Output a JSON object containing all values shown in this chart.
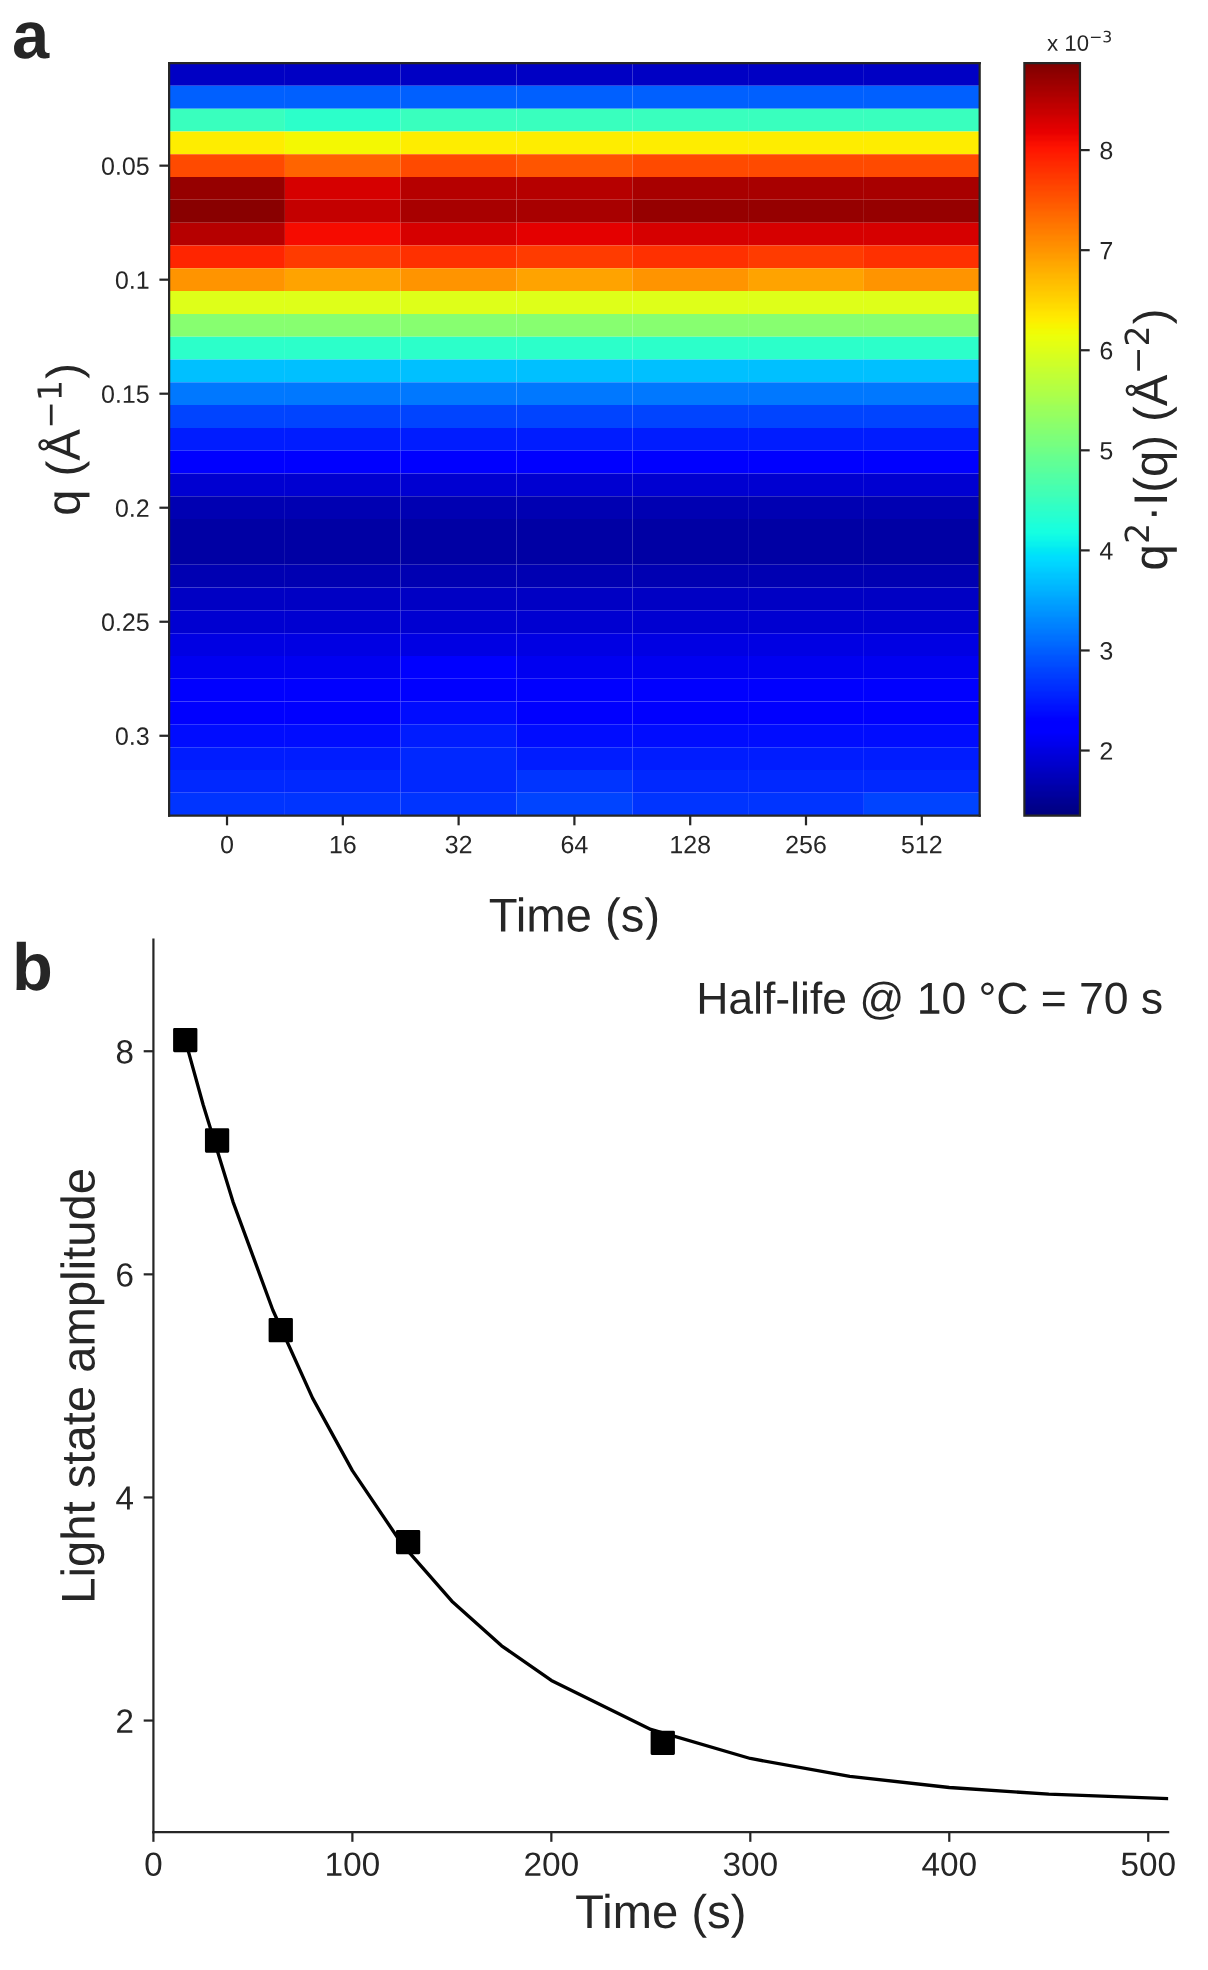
{
  "chart_data": [
    {
      "type": "heatmap",
      "xlabel": "Time (s)",
      "ylabel": "q (Å$^{−1}$)",
      "clabel": "q$^{2}$·I(q) (Å$^{−2}$)",
      "annotations": [
        "a",
        "x 10$^{−3}$"
      ],
      "categories": [
        "0",
        "16",
        "32",
        "64",
        "128",
        "256",
        "512"
      ],
      "y_categories": [
        null,
        null,
        null,
        null,
        "0.05",
        null,
        null,
        null,
        null,
        "0.1",
        null,
        null,
        null,
        null,
        "0.15",
        null,
        null,
        null,
        null,
        "0.2",
        null,
        null,
        null,
        null,
        "0.25",
        null,
        null,
        null,
        null,
        "0.3",
        null,
        null,
        null
      ],
      "clim": [
        1.35,
        8.87
      ],
      "cticks": [
        2,
        3,
        4,
        5,
        6,
        7,
        8
      ],
      "cells": [
        [
          1.8,
          1.8,
          1.8,
          1.8,
          1.8,
          1.8,
          1.8
        ],
        [
          3.0,
          3.0,
          3.0,
          3.0,
          3.0,
          3.0,
          3.0
        ],
        [
          4.5,
          4.4,
          4.5,
          4.5,
          4.5,
          4.5,
          4.5
        ],
        [
          6.3,
          6.2,
          6.3,
          6.3,
          6.3,
          6.3,
          6.3
        ],
        [
          7.6,
          7.4,
          7.6,
          7.5,
          7.6,
          7.6,
          7.6
        ],
        [
          8.7,
          8.3,
          8.5,
          8.5,
          8.6,
          8.6,
          8.6
        ],
        [
          8.8,
          8.4,
          8.6,
          8.6,
          8.7,
          8.7,
          8.7
        ],
        [
          8.5,
          8.1,
          8.3,
          8.2,
          8.3,
          8.3,
          8.3
        ],
        [
          7.9,
          7.7,
          7.8,
          7.7,
          7.8,
          7.7,
          7.8
        ],
        [
          7.0,
          6.9,
          7.0,
          6.9,
          7.0,
          6.9,
          7.0
        ],
        [
          6.0,
          6.0,
          6.0,
          6.0,
          6.0,
          6.0,
          6.0
        ],
        [
          5.2,
          5.2,
          5.2,
          5.2,
          5.2,
          5.2,
          5.2
        ],
        [
          4.4,
          4.4,
          4.4,
          4.4,
          4.4,
          4.4,
          4.4
        ],
        [
          3.7,
          3.7,
          3.7,
          3.7,
          3.7,
          3.7,
          3.7
        ],
        [
          3.2,
          3.2,
          3.2,
          3.2,
          3.2,
          3.2,
          3.2
        ],
        [
          2.8,
          2.8,
          2.8,
          2.8,
          2.8,
          2.8,
          2.8
        ],
        [
          2.5,
          2.5,
          2.5,
          2.5,
          2.5,
          2.5,
          2.5
        ],
        [
          2.2,
          2.2,
          2.2,
          2.2,
          2.2,
          2.2,
          2.2
        ],
        [
          1.9,
          1.9,
          1.9,
          1.9,
          1.9,
          1.9,
          1.9
        ],
        [
          1.7,
          1.7,
          1.7,
          1.7,
          1.7,
          1.7,
          1.7
        ],
        [
          1.6,
          1.6,
          1.6,
          1.6,
          1.6,
          1.6,
          1.6
        ],
        [
          1.6,
          1.6,
          1.6,
          1.6,
          1.6,
          1.6,
          1.6
        ],
        [
          1.7,
          1.7,
          1.7,
          1.7,
          1.7,
          1.7,
          1.7
        ],
        [
          1.8,
          1.8,
          1.8,
          1.8,
          1.8,
          1.8,
          1.8
        ],
        [
          1.9,
          1.9,
          1.9,
          1.9,
          1.9,
          1.9,
          1.9
        ],
        [
          2.0,
          2.0,
          2.0,
          2.0,
          2.0,
          2.0,
          2.0
        ],
        [
          2.1,
          2.1,
          2.2,
          2.1,
          2.1,
          2.1,
          2.1
        ],
        [
          2.2,
          2.2,
          2.3,
          2.2,
          2.2,
          2.2,
          2.2
        ],
        [
          2.3,
          2.3,
          2.4,
          2.3,
          2.3,
          2.3,
          2.3
        ],
        [
          2.4,
          2.4,
          2.5,
          2.4,
          2.4,
          2.4,
          2.4
        ],
        [
          2.5,
          2.5,
          2.6,
          2.5,
          2.5,
          2.5,
          2.5
        ],
        [
          2.6,
          2.6,
          2.6,
          2.7,
          2.6,
          2.6,
          2.6
        ],
        [
          2.7,
          2.7,
          2.7,
          2.8,
          2.7,
          2.7,
          2.8
        ]
      ]
    },
    {
      "type": "scatter",
      "xlabel": "Time (s)",
      "ylabel": "Light state amplitude",
      "annotations": [
        "b",
        "Half-life @ 10 °C = 70 s"
      ],
      "xlim": [
        0,
        510
      ],
      "xticks": [
        0,
        100,
        200,
        300,
        400,
        500
      ],
      "ylim": [
        1,
        9
      ],
      "yticks": [
        2,
        4,
        6,
        8
      ],
      "grid": false,
      "legend": false,
      "series": [
        {
          "type": "scatter",
          "color": "#000000",
          "marker": "square",
          "x": [
            16,
            32,
            64,
            128,
            256
          ],
          "values": [
            8.1,
            7.2,
            5.5,
            3.6,
            1.8
          ]
        },
        {
          "type": "line",
          "color": "#000000",
          "marker": "none",
          "line_style": "solid",
          "x": [
            16,
            25,
            40,
            60,
            80,
            100,
            125,
            150,
            175,
            200,
            250,
            300,
            350,
            400,
            450,
            510
          ],
          "values": [
            8.1,
            7.52,
            6.65,
            5.68,
            4.89,
            4.24,
            3.58,
            3.07,
            2.67,
            2.36,
            1.92,
            1.66,
            1.5,
            1.4,
            1.34,
            1.3
          ]
        }
      ]
    }
  ]
}
